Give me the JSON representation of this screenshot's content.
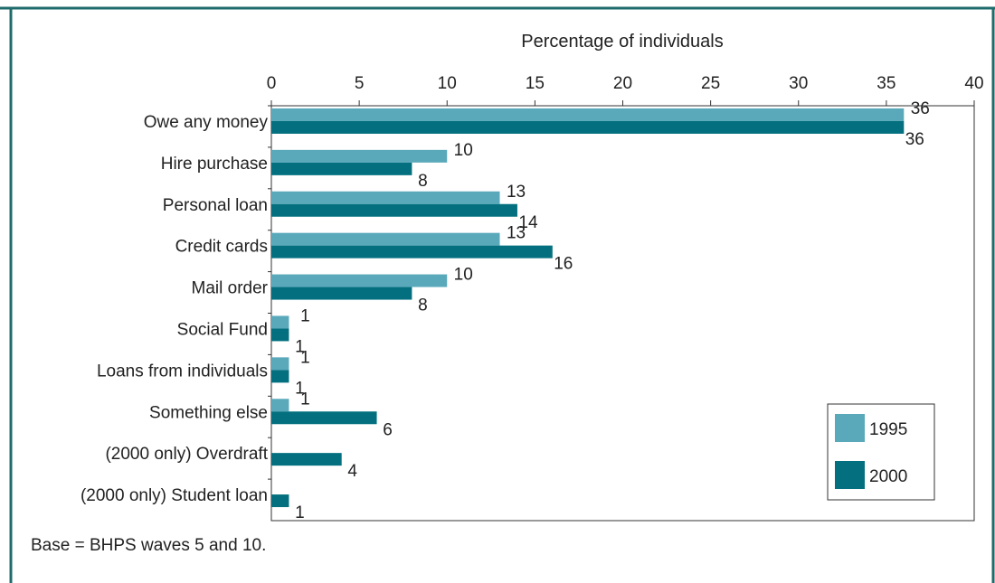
{
  "chart_data": {
    "type": "bar",
    "orientation": "horizontal",
    "xlabel": "Percentage of individuals",
    "xlim": [
      0,
      40
    ],
    "xticks": [
      "0",
      "5",
      "10",
      "15",
      "20",
      "25",
      "30",
      "35",
      "40"
    ],
    "grid": false,
    "legend_position": "bottom-right",
    "categories": [
      "Owe any money",
      "Hire purchase",
      "Personal loan",
      "Credit cards",
      "Mail order",
      "Social Fund",
      "Loans from individuals",
      "Something else",
      "(2000 only) Overdraft",
      "(2000 only) Student loan"
    ],
    "series": [
      {
        "name": "1995",
        "color": "#5aa9bb",
        "values": [
          36,
          10,
          13,
          13,
          10,
          1,
          1,
          1,
          null,
          null
        ]
      },
      {
        "name": "2000",
        "color": "#04707f",
        "values": [
          36,
          8,
          14,
          16,
          8,
          1,
          1,
          6,
          4,
          1
        ]
      }
    ]
  },
  "note": "Base = BHPS waves 5 and 10.",
  "colors": {
    "frame": "#1f6b6b",
    "axis": "#333333"
  }
}
